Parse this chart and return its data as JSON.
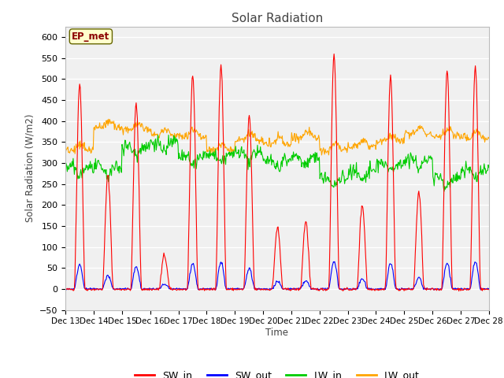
{
  "title": "Solar Radiation",
  "ylabel": "Solar Radiation (W/m2)",
  "xlabel": "Time",
  "annotation": "EP_met",
  "ylim": [
    -50,
    625
  ],
  "yticks": [
    -50,
    0,
    50,
    100,
    150,
    200,
    250,
    300,
    350,
    400,
    450,
    500,
    550,
    600
  ],
  "colors": {
    "SW_in": "#ff0000",
    "SW_out": "#0000ff",
    "LW_in": "#00cc00",
    "LW_out": "#ffa500"
  },
  "legend_labels": [
    "SW_in",
    "SW_out",
    "LW_in",
    "LW_out"
  ],
  "fig_bg": "#ffffff",
  "plot_bg": "#f0f0f0",
  "n_days": 15,
  "start_day": 13,
  "points_per_day": 48
}
